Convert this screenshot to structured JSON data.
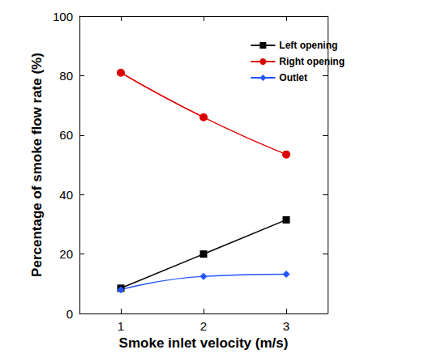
{
  "chart_data": {
    "type": "line",
    "x_label": "Smoke inlet velocity (m/s)",
    "y_label": "Percentage of smoke flow rate (%)",
    "x": [
      1,
      2,
      3
    ],
    "series": [
      {
        "name": "Left opening",
        "color": "#000000",
        "marker": "square",
        "line_style": "solid",
        "values": [
          8.5,
          20,
          31.5
        ]
      },
      {
        "name": "Right opening",
        "color": "#dd0000",
        "marker": "circle",
        "line_style": "solid",
        "values": [
          81,
          66,
          53.5
        ]
      },
      {
        "name": "Outlet",
        "color": "#2255ff",
        "marker": "diamond",
        "line_style": "solid",
        "values": [
          8,
          12.5,
          13.2
        ]
      }
    ],
    "xlim": [
      0.5,
      3.5
    ],
    "xticks": [
      1,
      2,
      3
    ],
    "ylim": [
      0,
      100
    ],
    "yticks": [
      0,
      20,
      40,
      60,
      80,
      100
    ],
    "grid": false,
    "legend": "upper right"
  }
}
